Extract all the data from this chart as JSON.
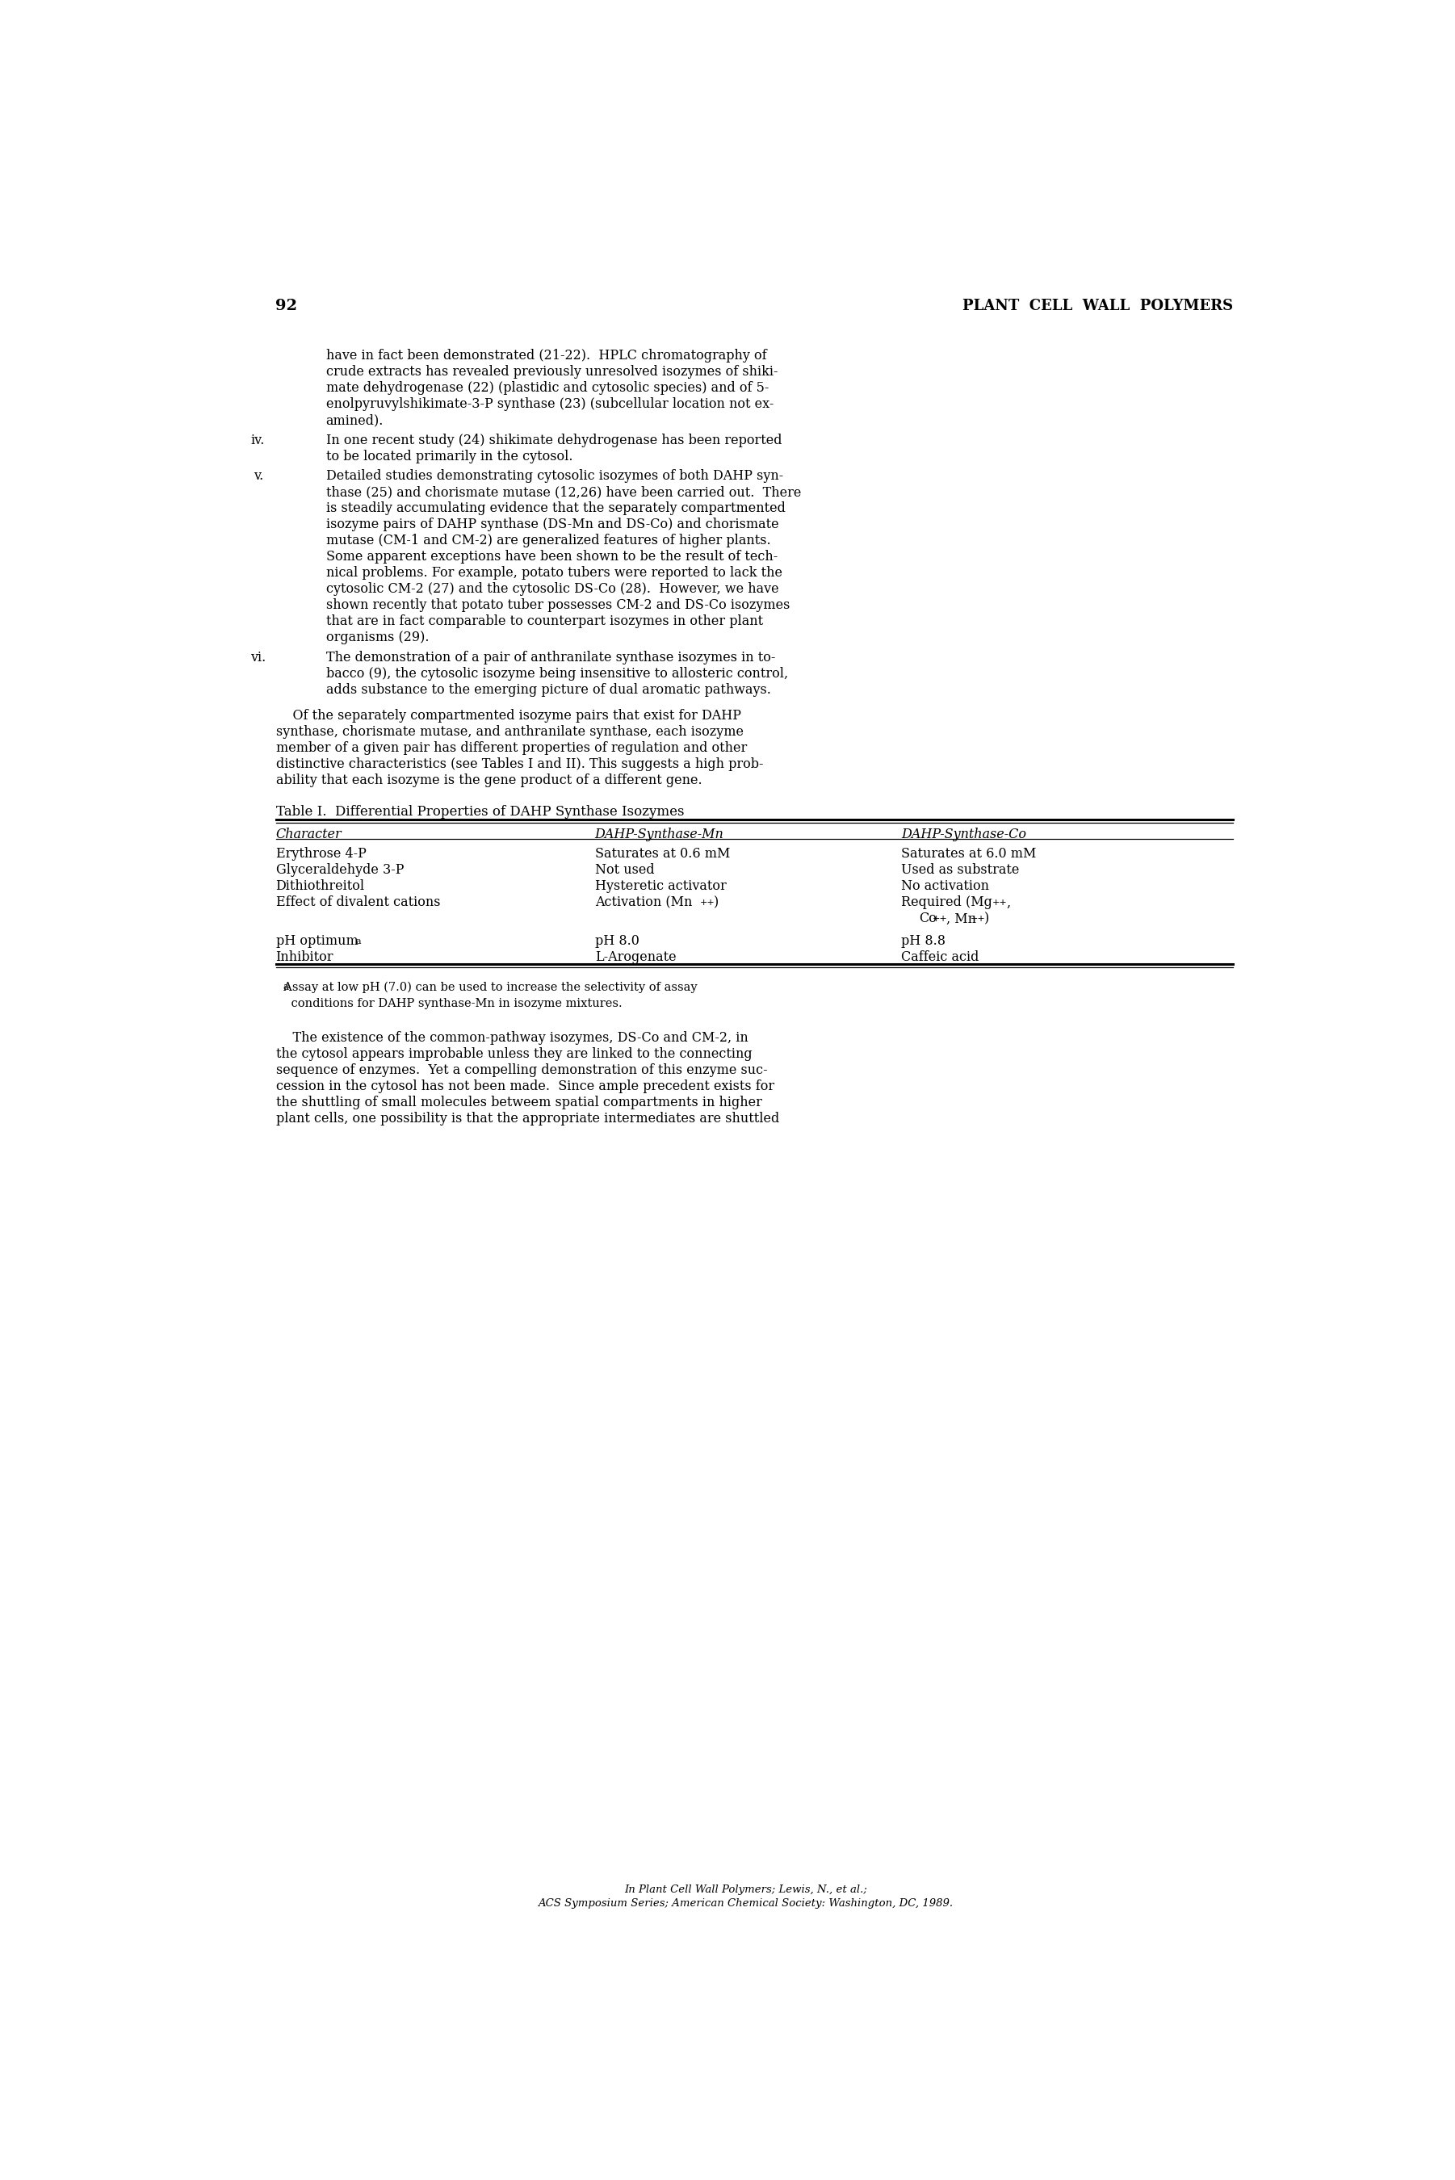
{
  "page_number": "92",
  "header_right": "PLANT CELL WALL POLYMERS",
  "background_color": "#ffffff",
  "text_color": "#000000",
  "font_family": "serif",
  "body_font_size": 11.5,
  "header_font_size": 13,
  "page_number_font_size": 14,
  "table_title": "Table I.  Differential Properties of DAHP Synthase Isozymes",
  "footer_line1": "In Plant Cell Wall Polymers; Lewis, N., et al.;",
  "footer_line2": "ACS Symposium Series; American Chemical Society: Washington, DC, 1989."
}
